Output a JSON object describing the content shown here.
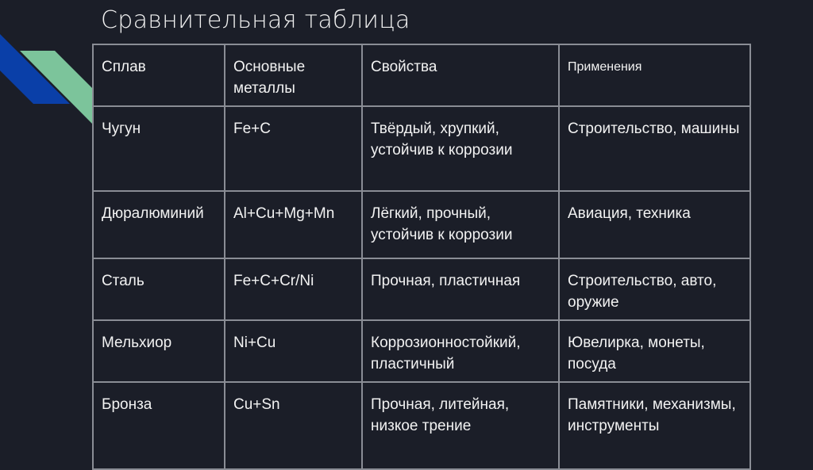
{
  "title": "Сравнительная таблица",
  "colors": {
    "background": "#1b1e28",
    "accent_blue": "#0a3fa8",
    "accent_green": "#7cc49b",
    "border": "#8a8d95"
  },
  "table": {
    "headers": [
      "Сплав",
      "Основные металлы",
      "Свойства",
      "Применения"
    ],
    "rows": [
      [
        "Чугун",
        "Fe+C",
        "Твёрдый, хрупкий, устойчив к коррозии",
        "Строительство, машины"
      ],
      [
        "Дюралюминий",
        "Al+Cu+Mg+Mn",
        "Лёгкий, прочный, устойчив к коррозии",
        "Авиация, техника"
      ],
      [
        "Сталь",
        "Fe+C+Cr/Ni",
        "Прочная, пластичная",
        "Строительство, авто, оружие"
      ],
      [
        "Мельхиор",
        "Ni+Cu",
        "Коррозионностойкий, пластичный",
        "Ювелирка, монеты, посуда"
      ],
      [
        "Бронза",
        "Cu+Sn",
        "Прочная, литейная, низкое трение",
        "Памятники, механизмы, инструменты"
      ]
    ]
  }
}
